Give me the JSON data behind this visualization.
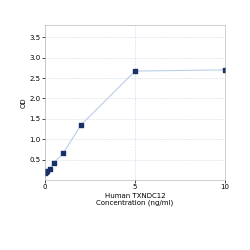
{
  "x": [
    0,
    0.0625,
    0.125,
    0.25,
    0.5,
    1,
    2,
    5,
    10
  ],
  "y": [
    0.175,
    0.19,
    0.21,
    0.28,
    0.42,
    0.65,
    1.35,
    2.67,
    2.7
  ],
  "line_color": "#b8cfe8",
  "marker_color": "#1a3068",
  "marker_style": "s",
  "marker_size": 3.5,
  "xlabel_line1": "Human TXNDC12",
  "xlabel_line2": "Concentration (ng/ml)",
  "ylabel": "OD",
  "xlim": [
    0,
    10
  ],
  "ylim": [
    0,
    3.8
  ],
  "yticks": [
    0.5,
    1.0,
    1.5,
    2.0,
    2.5,
    3.0,
    3.5
  ],
  "xticks": [
    0,
    5,
    10
  ],
  "grid_color": "#d0d8e8",
  "background_color": "#ffffff",
  "label_fontsize": 5,
  "tick_fontsize": 5
}
